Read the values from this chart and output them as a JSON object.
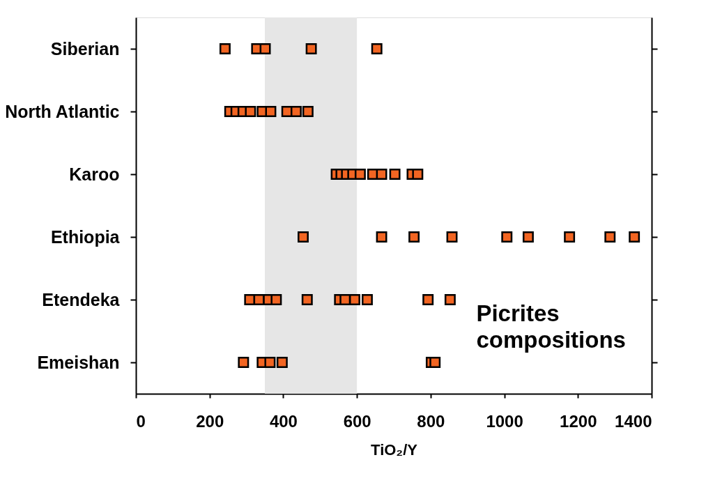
{
  "chart_data": {
    "type": "scatter",
    "orientation": "horizontal",
    "xlabel": "TiO₂/Y",
    "categories": [
      "Siberian",
      "North Atlantic",
      "Karoo",
      "Ethiopia",
      "Etendeka",
      "Emeishan"
    ],
    "series": [
      {
        "color": "#f26522",
        "x": [
          "Siberian",
          "Siberian",
          "Siberian",
          "Siberian",
          "Siberian",
          "North Atlantic",
          "North Atlantic",
          "North Atlantic",
          "North Atlantic",
          "North Atlantic",
          "North Atlantic",
          "North Atlantic",
          "North Atlantic",
          "North Atlantic",
          "Karoo",
          "Karoo",
          "Karoo",
          "Karoo",
          "Karoo",
          "Karoo",
          "Karoo",
          "Karoo",
          "Karoo",
          "Karoo",
          "Ethiopia",
          "Ethiopia",
          "Ethiopia",
          "Ethiopia",
          "Ethiopia",
          "Ethiopia",
          "Ethiopia",
          "Ethiopia",
          "Ethiopia",
          "Etendeka",
          "Etendeka",
          "Etendeka",
          "Etendeka",
          "Etendeka",
          "Etendeka",
          "Etendeka",
          "Etendeka",
          "Etendeka",
          "Etendeka",
          "Etendeka",
          "Emeishan",
          "Emeishan",
          "Emeishan",
          "Emeishan",
          "Emeishan",
          "Emeishan"
        ],
        "values": [
          242,
          328,
          351,
          476,
          654,
          255,
          272,
          291,
          311,
          343,
          366,
          410,
          435,
          467,
          544,
          557,
          572,
          589,
          609,
          643,
          667,
          703,
          750,
          765,
          454,
          667,
          755,
          858,
          1007,
          1065,
          1177,
          1287,
          1353,
          309,
          334,
          360,
          381,
          465,
          553,
          568,
          594,
          628,
          793,
          853,
          292,
          343,
          364,
          397,
          802,
          812
        ]
      }
    ],
    "xlim": [
      0,
      1400
    ],
    "xticks": [
      0,
      200,
      400,
      600,
      800,
      1000,
      1200,
      1400
    ],
    "bands": [
      {
        "axis": "x",
        "from": 350,
        "to": 600,
        "color": "#e6e6e6"
      }
    ],
    "annotations": [
      "Picrites compositions"
    ],
    "marker": "square",
    "grid": false,
    "legend": false
  }
}
